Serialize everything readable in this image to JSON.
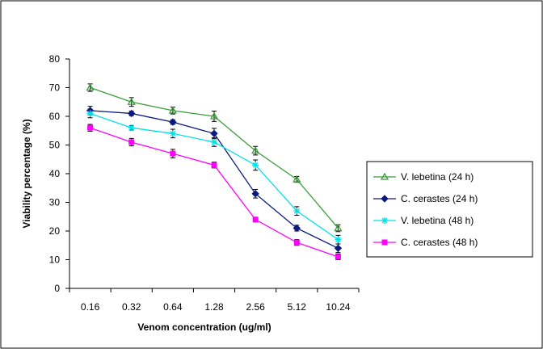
{
  "chart_data": {
    "type": "line",
    "title": "",
    "xlabel": "Venom concentration (ug/ml)",
    "ylabel": "Viability percentage (%)",
    "categories": [
      "0.16",
      "0.32",
      "0.64",
      "1.28",
      "2.56",
      "5.12",
      "10.24"
    ],
    "ylim": [
      0,
      80
    ],
    "yticks": [
      0,
      10,
      20,
      30,
      40,
      50,
      60,
      70,
      80
    ],
    "grid": false,
    "legend_position": "right",
    "series": [
      {
        "name": "V. lebetina (24 h)",
        "color": "#3a9e3a",
        "marker": "triangle",
        "values": [
          70,
          65,
          62,
          60,
          48,
          38,
          21
        ],
        "errors": [
          1.3,
          1.5,
          1.2,
          1.8,
          1.5,
          1.0,
          1.2
        ]
      },
      {
        "name": "C. cerastes (24 h)",
        "color": "#0a1a80",
        "marker": "diamond",
        "values": [
          62,
          61,
          58,
          54,
          33,
          21,
          14
        ],
        "errors": [
          1.5,
          0.8,
          0.8,
          1.8,
          1.5,
          1.0,
          1.5
        ]
      },
      {
        "name": "V. lebetina (48 h)",
        "color": "#00e0e8",
        "marker": "asterisk",
        "values": [
          61,
          56,
          54,
          51,
          43,
          27,
          17
        ],
        "errors": [
          1.5,
          0.8,
          1.5,
          1.5,
          1.8,
          1.5,
          1.5
        ]
      },
      {
        "name": "C. cerastes (48 h)",
        "color": "#ff00ff",
        "marker": "square",
        "values": [
          56,
          51,
          47,
          43,
          24,
          16,
          11
        ],
        "errors": [
          1.2,
          1.3,
          1.5,
          1.0,
          0.8,
          1.0,
          1.0
        ]
      }
    ]
  }
}
